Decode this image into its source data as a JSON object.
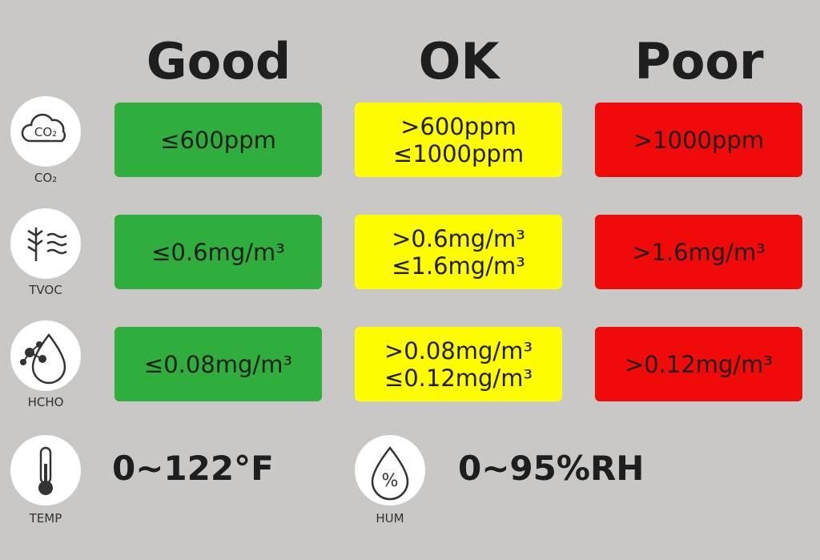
{
  "header": {
    "columns": [
      "Good",
      "OK",
      "Poor"
    ]
  },
  "rows": [
    {
      "icon_text": "CO₂",
      "label": "CO₂",
      "cells": [
        [
          "≤600ppm"
        ],
        [
          ">600ppm",
          "≤1000ppm"
        ],
        [
          ">1000ppm"
        ]
      ]
    },
    {
      "label": "TVOC",
      "cells": [
        [
          "≤0.6mg/m³"
        ],
        [
          ">0.6mg/m³",
          "≤1.6mg/m³"
        ],
        [
          ">1.6mg/m³"
        ]
      ]
    },
    {
      "label": "HCHO",
      "cells": [
        [
          "≤0.08mg/m³"
        ],
        [
          ">0.08mg/m³",
          "≤0.12mg/m³"
        ],
        [
          ">0.12mg/m³"
        ]
      ]
    }
  ],
  "footer": [
    {
      "label": "TEMP",
      "value": "0~122°F"
    },
    {
      "icon_text": "%",
      "label": "HUM",
      "value": "0~95%RH"
    }
  ]
}
